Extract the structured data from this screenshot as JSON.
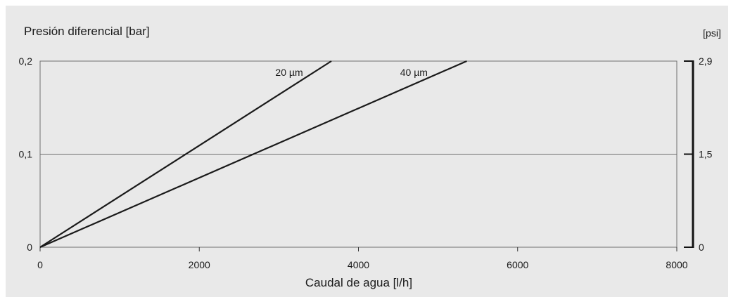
{
  "chart_data": {
    "type": "line",
    "title": "Presión diferencial [bar]",
    "xlabel": "Caudal de agua [l/h]",
    "ylabel": "Presión diferencial [bar]",
    "y2label": "[psi]",
    "xlim": [
      0,
      8000
    ],
    "ylim": [
      0,
      0.2
    ],
    "x_ticks": [
      "0",
      "2000",
      "4000",
      "6000",
      "8000"
    ],
    "x_tick_values": [
      0,
      2000,
      4000,
      6000,
      8000
    ],
    "y_ticks": [
      "0",
      "0,1",
      "0,2"
    ],
    "y_tick_values": [
      0,
      0.1,
      0.2
    ],
    "y2_ticks": [
      "0",
      "1,5",
      "2,9"
    ],
    "y2_tick_values": [
      0,
      0.1,
      0.2
    ],
    "grid": "horizontal at 0,1",
    "series": [
      {
        "name": "20 µm",
        "x": [
          0,
          3660
        ],
        "y": [
          0,
          0.2
        ]
      },
      {
        "name": "40 µm",
        "x": [
          0,
          5360
        ],
        "y": [
          0,
          0.2
        ]
      }
    ]
  }
}
